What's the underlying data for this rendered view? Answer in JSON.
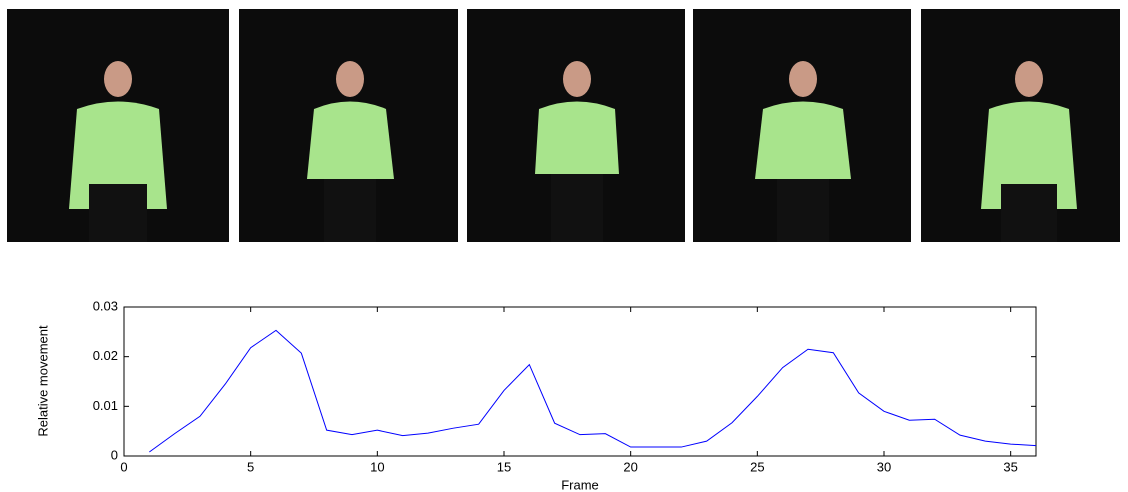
{
  "chart_data": {
    "type": "line",
    "xlabel": "Frame",
    "ylabel": "Relative movement",
    "x": [
      1,
      2,
      3,
      4,
      5,
      6,
      7,
      8,
      9,
      10,
      11,
      12,
      13,
      14,
      15,
      16,
      17,
      18,
      19,
      20,
      21,
      22,
      23,
      24,
      25,
      26,
      27,
      28,
      29,
      30,
      31,
      32,
      33,
      34,
      35,
      36
    ],
    "series": [
      {
        "color": "#0000ff",
        "values": [
          0.0008,
          0.0045,
          0.008,
          0.0145,
          0.0218,
          0.0253,
          0.0207,
          0.0052,
          0.0043,
          0.0052,
          0.0041,
          0.0046,
          0.0056,
          0.0064,
          0.0132,
          0.0184,
          0.0066,
          0.0043,
          0.0045,
          0.0018,
          0.0018,
          0.0018,
          0.003,
          0.0067,
          0.012,
          0.0178,
          0.0215,
          0.0208,
          0.0127,
          0.009,
          0.0072,
          0.0074,
          0.0042,
          0.003,
          0.0024,
          0.0021
        ]
      }
    ],
    "xlim": [
      0,
      36
    ],
    "xticks": [
      0,
      5,
      10,
      15,
      20,
      25,
      30,
      35
    ],
    "ylim": [
      0,
      0.03
    ],
    "yticks": [
      0,
      0.01,
      0.02,
      0.03
    ]
  }
}
